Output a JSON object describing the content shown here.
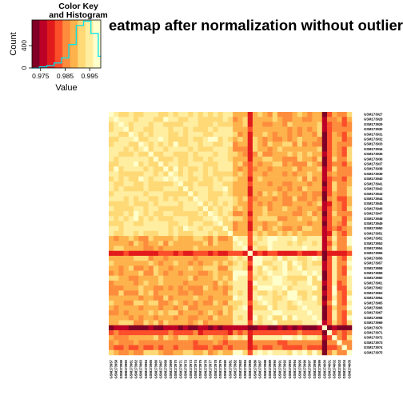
{
  "chart_data": {
    "type": "heatmap",
    "title": "eatmap after normalization without outlier",
    "color_key": {
      "title_line1": "Color Key",
      "title_line2": "and Histogram",
      "xlabel": "Value",
      "ylabel": "Count",
      "x_ticks": [
        "0.975",
        "0.985",
        "0.995"
      ],
      "x_tick_values": [
        0.975,
        0.985,
        0.995
      ],
      "y_ticks": [
        "0",
        "400"
      ],
      "y_tick_values": [
        0,
        400
      ],
      "value_range": [
        0.9715,
        0.9995
      ],
      "count_range": [
        0,
        860
      ],
      "palette": [
        "#800026",
        "#bd0026",
        "#e31a1c",
        "#fc4e2a",
        "#fd8d3c",
        "#feb24c",
        "#fed976",
        "#ffeda0",
        "#ffffcc"
      ],
      "histogram_color": "#00e5ee",
      "histogram_bins": [
        0.9715,
        0.9745,
        0.9775,
        0.9805,
        0.9835,
        0.9865,
        0.9895,
        0.9925,
        0.9955,
        0.9985,
        0.9995
      ],
      "histogram_counts": [
        0,
        20,
        40,
        90,
        180,
        420,
        760,
        840,
        620,
        210
      ]
    },
    "column_labels": [
      "GSM173957",
      "GSM173958",
      "GSM173959",
      "GSM173960",
      "GSM173961",
      "GSM173962",
      "GSM173963",
      "GSM173964",
      "GSM173965",
      "GSM173966",
      "GSM173967",
      "GSM173968",
      "GSM173969",
      "GSM173970",
      "GSM173971",
      "GSM173972",
      "GSM173973",
      "GSM173974",
      "GSM173975",
      "GSM173976",
      "GSM173977",
      "GSM173978",
      "GSM173979",
      "GSM173980",
      "GSM173981",
      "GSM173982",
      "GSM173983",
      "GSM173984",
      "GSM173985",
      "GSM173986",
      "GSM173987",
      "GSM173988",
      "GSM173989",
      "GSM173990",
      "GSM173991",
      "GSM173992",
      "GSM173993",
      "GSM173994",
      "GSM173995",
      "GSM173996",
      "GSM173997",
      "GSM173998",
      "GSM173999",
      "GSM174000",
      "GSM174001",
      "GSM174002",
      "GSM174003",
      "GSM174004",
      "GSM174005"
    ],
    "row_labels": [
      "GSM173927",
      "GSM173928",
      "GSM173929",
      "GSM173930",
      "GSM173931",
      "GSM173932",
      "GSM173933",
      "GSM173934",
      "GSM173935",
      "GSM173936",
      "GSM173937",
      "GSM173938",
      "GSM173939",
      "GSM173940",
      "GSM173941",
      "GSM173942",
      "GSM173943",
      "GSM173944",
      "GSM173945",
      "GSM173946",
      "GSM173947",
      "GSM173948",
      "GSM173949",
      "GSM173950",
      "GSM173951",
      "GSM173952",
      "GSM173953",
      "GSM173954",
      "GSM173955",
      "GSM173956",
      "GSM173957",
      "GSM173958",
      "GSM173959",
      "GSM173960",
      "GSM173961",
      "GSM173962",
      "GSM173963",
      "GSM173964",
      "GSM173965",
      "GSM173966",
      "GSM173967",
      "GSM173968",
      "GSM173969",
      "GSM173970",
      "GSM173971",
      "GSM173972",
      "GSM173973",
      "GSM173974",
      "GSM173975"
    ],
    "n_rows": 49,
    "n_cols": 49,
    "clusters": [
      [
        0,
        24
      ],
      [
        25,
        48
      ]
    ],
    "within_cluster_similarity": [
      0.9935,
      0.9945
    ],
    "between_cluster_similarity": 0.9885,
    "outlier_samples": [
      {
        "index": 28,
        "similarity": 0.9805
      },
      {
        "index": 43,
        "similarity": 0.9745
      },
      {
        "index": 44,
        "similarity": 0.9825
      },
      {
        "index": 47,
        "similarity": 0.9835
      },
      {
        "index": 46,
        "similarity": 0.9855
      }
    ],
    "diagonal_value": 0.9995,
    "grid": false
  }
}
